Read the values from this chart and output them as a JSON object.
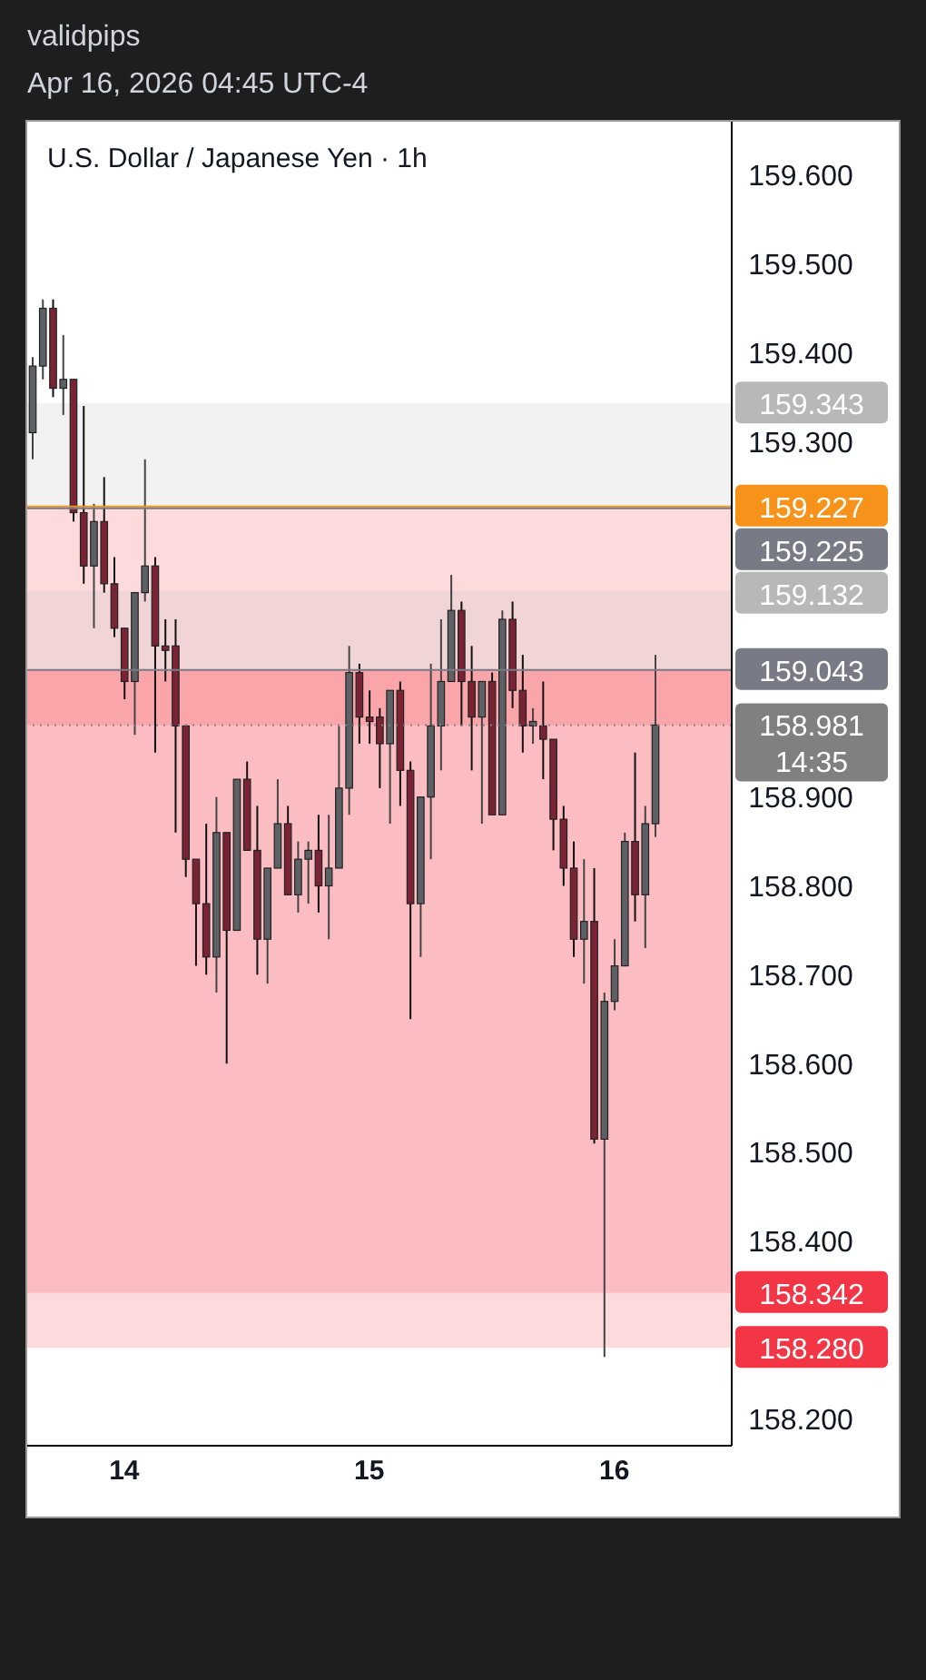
{
  "chart_data": {
    "type": "candlestick",
    "title": "U.S. Dollar / Japanese Yen · 1h",
    "categories": [
      null,
      null,
      null,
      null,
      null,
      null,
      null,
      null,
      null,
      "14",
      null,
      null,
      null,
      null,
      null,
      null,
      null,
      null,
      null,
      null,
      null,
      null,
      null,
      null,
      null,
      null,
      null,
      null,
      null,
      null,
      null,
      null,
      null,
      "15",
      null,
      null,
      null,
      null,
      null,
      null,
      null,
      null,
      null,
      null,
      null,
      null,
      null,
      null,
      null,
      null,
      null,
      null,
      null,
      null,
      null,
      null,
      null,
      "16",
      null,
      null,
      null,
      null,
      null,
      null,
      null,
      null,
      null,
      null,
      null
    ],
    "ohlc": [
      [
        159.31,
        159.395,
        159.28,
        159.385
      ],
      [
        159.385,
        159.46,
        159.37,
        159.45
      ],
      [
        159.45,
        159.46,
        159.35,
        159.36
      ],
      [
        159.36,
        159.42,
        159.33,
        159.37
      ],
      [
        159.37,
        159.37,
        159.21,
        159.22
      ],
      [
        159.22,
        159.34,
        159.14,
        159.16
      ],
      [
        159.16,
        159.23,
        159.09,
        159.21
      ],
      [
        159.21,
        159.26,
        159.13,
        159.14
      ],
      [
        159.14,
        159.17,
        159.08,
        159.09
      ],
      [
        159.09,
        159.09,
        159.01,
        159.03
      ],
      [
        159.03,
        159.13,
        158.97,
        159.13
      ],
      [
        159.13,
        159.28,
        159.12,
        159.16
      ],
      [
        159.16,
        159.17,
        158.95,
        159.07
      ],
      [
        159.07,
        159.1,
        159.03,
        159.065
      ],
      [
        159.07,
        159.1,
        158.86,
        158.98
      ],
      [
        158.98,
        158.98,
        158.81,
        158.83
      ],
      [
        158.83,
        158.83,
        158.71,
        158.78
      ],
      [
        158.78,
        158.87,
        158.7,
        158.72
      ],
      [
        158.72,
        158.9,
        158.68,
        158.86
      ],
      [
        158.86,
        158.86,
        158.6,
        158.75
      ],
      [
        158.75,
        158.92,
        158.75,
        158.92
      ],
      [
        158.92,
        158.94,
        158.84,
        158.84
      ],
      [
        158.84,
        158.89,
        158.7,
        158.74
      ],
      [
        158.74,
        158.82,
        158.69,
        158.82
      ],
      [
        158.82,
        158.92,
        158.82,
        158.87
      ],
      [
        158.87,
        158.89,
        158.79,
        158.79
      ],
      [
        158.79,
        158.85,
        158.77,
        158.83
      ],
      [
        158.83,
        158.85,
        158.78,
        158.84
      ],
      [
        158.84,
        158.88,
        158.77,
        158.8
      ],
      [
        158.8,
        158.88,
        158.74,
        158.82
      ],
      [
        158.82,
        158.98,
        158.82,
        158.91
      ],
      [
        158.91,
        159.07,
        158.88,
        159.04
      ],
      [
        159.04,
        159.05,
        158.96,
        158.99
      ],
      [
        158.99,
        159.02,
        158.96,
        158.985
      ],
      [
        158.99,
        159,
        158.91,
        158.96
      ],
      [
        158.96,
        159.02,
        158.87,
        159.02
      ],
      [
        159.02,
        159.03,
        158.89,
        158.93
      ],
      [
        158.93,
        158.94,
        158.65,
        158.78
      ],
      [
        158.78,
        158.9,
        158.72,
        158.9
      ],
      [
        158.9,
        159.05,
        158.83,
        158.98
      ],
      [
        158.98,
        159.1,
        158.93,
        159.03
      ],
      [
        159.03,
        159.15,
        159.03,
        159.11
      ],
      [
        159.11,
        159.12,
        158.98,
        159.03
      ],
      [
        159.03,
        159.07,
        158.93,
        158.99
      ],
      [
        158.99,
        159.03,
        158.87,
        159.03
      ],
      [
        159.03,
        159.04,
        158.88,
        158.88
      ],
      [
        158.88,
        159.11,
        158.88,
        159.1
      ],
      [
        159.1,
        159.12,
        159,
        159.02
      ],
      [
        159.02,
        159.06,
        158.95,
        158.98
      ],
      [
        158.98,
        159,
        158.96,
        158.985
      ],
      [
        158.98,
        159.03,
        158.92,
        158.965
      ],
      [
        158.965,
        158.965,
        158.84,
        158.875
      ],
      [
        158.875,
        158.89,
        158.8,
        158.82
      ],
      [
        158.82,
        158.85,
        158.72,
        158.74
      ],
      [
        158.74,
        158.83,
        158.69,
        158.76
      ],
      [
        158.76,
        158.82,
        158.51,
        158.515
      ],
      [
        158.515,
        158.68,
        158.27,
        158.67
      ],
      [
        158.67,
        158.74,
        158.66,
        158.71
      ],
      [
        158.71,
        158.86,
        158.71,
        158.85
      ],
      [
        158.85,
        158.95,
        158.76,
        158.79
      ],
      [
        158.79,
        158.89,
        158.73,
        158.87
      ],
      [
        158.87,
        159.06,
        158.855,
        158.981
      ],
      null,
      null,
      null,
      null,
      null,
      null,
      null
    ],
    "ylim": [
      158.17,
      159.66
    ],
    "yticks": [
      {
        "value": 158.2,
        "label": "158.200"
      },
      {
        "value": 158.4,
        "label": "158.400"
      },
      {
        "value": 158.5,
        "label": "158.500"
      },
      {
        "value": 158.6,
        "label": "158.600"
      },
      {
        "value": 158.7,
        "label": "158.700"
      },
      {
        "value": 158.8,
        "label": "158.800"
      },
      {
        "value": 158.9,
        "label": "158.900"
      },
      {
        "value": 159.3,
        "label": "159.300"
      },
      {
        "value": 159.4,
        "label": "159.400"
      },
      {
        "value": 159.5,
        "label": "159.500"
      },
      {
        "value": 159.6,
        "label": "159.600"
      }
    ],
    "ref_lines": [
      {
        "axis": "y",
        "value": 159.227,
        "label": "159.227",
        "color": "#f7931a",
        "line_style": "solid"
      },
      {
        "axis": "y",
        "value": 159.225,
        "label": "159.225",
        "color": "#787b86",
        "line_style": "solid"
      },
      {
        "axis": "y",
        "value": 159.043,
        "label": "159.043",
        "color": "#787b86",
        "line_style": "solid"
      },
      {
        "axis": "y",
        "value": 158.981,
        "label": "158.981 14:35",
        "color": "#808080",
        "line_style": "dotted"
      }
    ],
    "bands": [
      {
        "axis": "y",
        "from": 159.225,
        "to": 159.343,
        "label": "159.343",
        "color": "#b8b8b8"
      },
      {
        "axis": "y",
        "from": 159.225,
        "to": 158.342,
        "label": "158.342",
        "color": "#f23645"
      },
      {
        "axis": "y",
        "from": 159.043,
        "to": 159.132,
        "label": "159.132",
        "color": "#b8b8b8"
      },
      {
        "axis": "y",
        "from": 159.043,
        "to": 158.28,
        "label": "158.280",
        "color": "#f23645"
      },
      {
        "axis": "y",
        "from": 159.043,
        "to": 158.981,
        "color": "#f23645"
      }
    ],
    "annotations": [
      "validpips",
      "Apr 16, 2026 04:45 UTC-4"
    ]
  }
}
